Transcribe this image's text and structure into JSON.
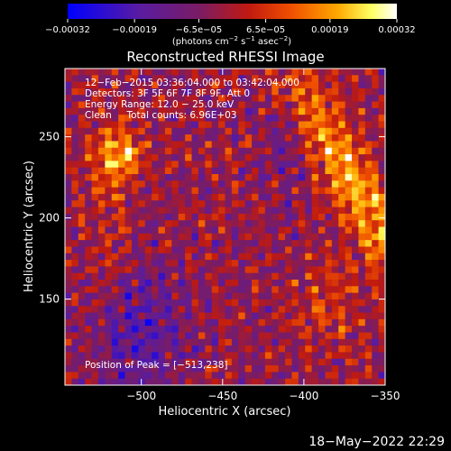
{
  "chart_data": {
    "type": "heatmap",
    "title": "Reconstructed RHESSI Image",
    "xlabel": "Heliocentric X (arcsec)",
    "ylabel": "Heliocentric Y (arcsec)",
    "xlim": [
      -547,
      -350
    ],
    "ylim": [
      97,
      292
    ],
    "x_ticks": [
      {
        "value": -500,
        "label": "−500"
      },
      {
        "value": -450,
        "label": "−450"
      },
      {
        "value": -400,
        "label": "−400"
      },
      {
        "value": -350,
        "label": "−350"
      }
    ],
    "y_ticks": [
      {
        "value": 150,
        "label": "150"
      },
      {
        "value": 200,
        "label": "200"
      },
      {
        "value": 250,
        "label": "250"
      }
    ],
    "colorbar": {
      "min": -0.00032,
      "max": 0.00032,
      "colormap": "blue-purple-red-yellow-white",
      "ticks": [
        {
          "value": -0.00032,
          "label": "−0.00032"
        },
        {
          "value": -0.00019,
          "label": "−0.00019"
        },
        {
          "value": -6.5e-05,
          "label": "−6.5e−05"
        },
        {
          "value": 6.5e-05,
          "label": "6.5e−05"
        },
        {
          "value": 0.00019,
          "label": "0.00019"
        },
        {
          "value": 0.00032,
          "label": "0.00032"
        }
      ],
      "unit": {
        "prefix": "(photons cm",
        "exp1": "−2",
        "mid1": " s",
        "exp2": "−1",
        "mid2": " asec",
        "exp3": "−2",
        "suffix": ")"
      }
    },
    "info_lines": [
      "12−Feb−2015 03:36:04.000 to 03:42:04.000",
      "Detectors: 3F 5F 6F 7F 8F 9F, Att 0",
      "Energy Range: 12.0 − 25.0 keV",
      "Clean     Total counts: 6.96E+03"
    ],
    "peak_label": "Position of Peak = [−513,238]",
    "peak": {
      "x": -513,
      "y": 238
    }
  },
  "timestamp": "18−May−2022 22:29",
  "colors": {
    "background": "#000000",
    "text": "#ffffff",
    "colormap_stops": [
      "#0000ff",
      "#5a1ca0",
      "#7a1c64",
      "#c01a10",
      "#f05000",
      "#ffa800",
      "#ffff60",
      "#ffffff"
    ]
  }
}
